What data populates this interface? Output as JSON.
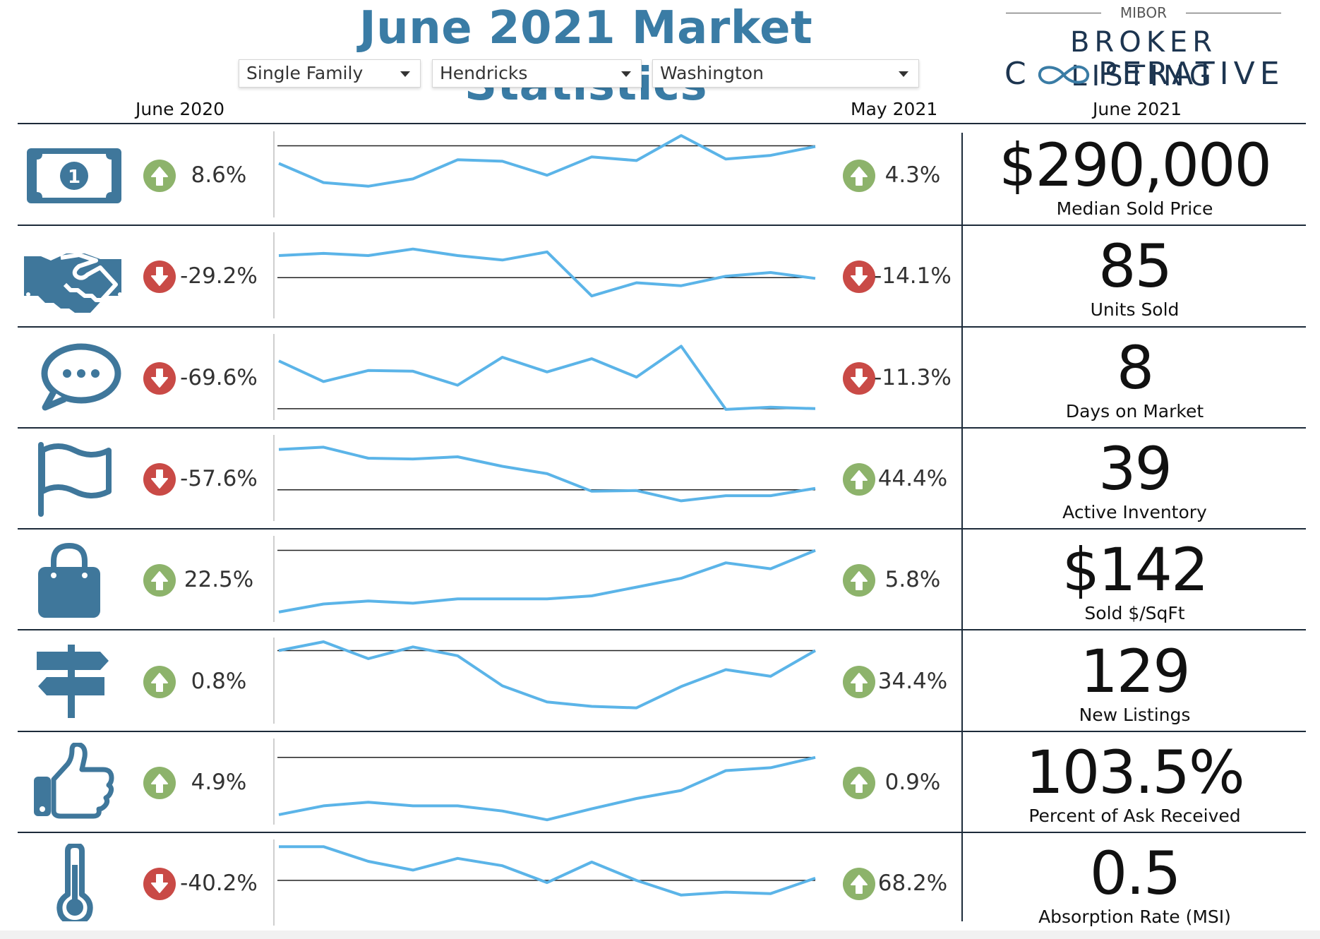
{
  "title": "June 2021 Market Statistics",
  "filters": {
    "property_type": "Single Family",
    "county": "Hendricks",
    "township": "Washington"
  },
  "logo": {
    "top": "MIBOR",
    "line1": "BROKER LISTING",
    "line2_start": "C",
    "line2_end": "PERATIVE"
  },
  "columns": {
    "prior_year": "June 2020",
    "prior_month": "May 2021",
    "current": "June 2021"
  },
  "colors": {
    "accent": "#3A7CA5",
    "icon": "#3F779B",
    "spark": "#5BB4E8",
    "up": "#8DB36B",
    "down": "#C94A46",
    "rule": "#1d2b3a"
  },
  "rows": [
    {
      "icon": "dollar-bill-icon",
      "yoy": {
        "value": "8.6%",
        "direction": "up"
      },
      "mom": {
        "value": "4.3%",
        "direction": "up"
      },
      "value": "$290,000",
      "label": "Median Sold Price",
      "spark": [
        0.62,
        0.36,
        0.31,
        0.41,
        0.67,
        0.65,
        0.46,
        0.71,
        0.66,
        1.0,
        0.68,
        0.73,
        0.85
      ],
      "ref": 0.86
    },
    {
      "icon": "handshake-icon",
      "yoy": {
        "value": "-29.2%",
        "direction": "down"
      },
      "mom": {
        "value": "-14.1%",
        "direction": "down"
      },
      "value": "85",
      "label": "Units Sold",
      "spark": [
        0.74,
        0.77,
        0.74,
        0.83,
        0.74,
        0.68,
        0.79,
        0.19,
        0.37,
        0.33,
        0.46,
        0.51,
        0.43
      ],
      "ref": 0.44
    },
    {
      "icon": "speech-bubble-icon",
      "yoy": {
        "value": "-69.6%",
        "direction": "down"
      },
      "mom": {
        "value": "-11.3%",
        "direction": "down"
      },
      "value": "8",
      "label": "Days on Market",
      "spark": [
        0.69,
        0.41,
        0.56,
        0.55,
        0.36,
        0.74,
        0.54,
        0.72,
        0.47,
        0.89,
        0.03,
        0.06,
        0.04
      ],
      "ref": 0.04
    },
    {
      "icon": "flag-icon",
      "yoy": {
        "value": "-57.6%",
        "direction": "down"
      },
      "mom": {
        "value": "44.4%",
        "direction": "up"
      },
      "value": "39",
      "label": "Active Inventory",
      "spark": [
        0.86,
        0.89,
        0.74,
        0.73,
        0.76,
        0.63,
        0.53,
        0.29,
        0.3,
        0.16,
        0.23,
        0.23,
        0.33
      ],
      "ref": 0.31
    },
    {
      "icon": "shopping-bag-icon",
      "yoy": {
        "value": "22.5%",
        "direction": "up"
      },
      "mom": {
        "value": "5.8%",
        "direction": "up"
      },
      "value": "$142",
      "label": "Sold $/SqFt",
      "spark": [
        0.02,
        0.13,
        0.17,
        0.14,
        0.2,
        0.2,
        0.2,
        0.24,
        0.36,
        0.48,
        0.69,
        0.61,
        0.86
      ],
      "ref": 0.86
    },
    {
      "icon": "signpost-icon",
      "yoy": {
        "value": "0.8%",
        "direction": "up"
      },
      "mom": {
        "value": "34.4%",
        "direction": "up"
      },
      "value": "129",
      "label": "New Listings",
      "spark": [
        0.88,
        1.0,
        0.77,
        0.93,
        0.81,
        0.4,
        0.18,
        0.12,
        0.1,
        0.39,
        0.62,
        0.53,
        0.88
      ],
      "ref": 0.88
    },
    {
      "icon": "thumbs-up-icon",
      "yoy": {
        "value": "4.9%",
        "direction": "up"
      },
      "mom": {
        "value": "0.9%",
        "direction": "up"
      },
      "value": "103.5%",
      "label": "Percent of Ask Received",
      "spark": [
        0.02,
        0.14,
        0.19,
        0.14,
        0.14,
        0.07,
        -0.05,
        0.1,
        0.24,
        0.35,
        0.62,
        0.66,
        0.8
      ],
      "ref": 0.8
    },
    {
      "icon": "thermometer-icon",
      "yoy": {
        "value": "-40.2%",
        "direction": "down"
      },
      "mom": {
        "value": "68.2%",
        "direction": "up"
      },
      "value": "0.5",
      "label": "Absorption Rate (MSI)",
      "spark": [
        0.96,
        0.96,
        0.76,
        0.64,
        0.8,
        0.7,
        0.47,
        0.75,
        0.5,
        0.3,
        0.34,
        0.32,
        0.53
      ],
      "ref": 0.5
    }
  ]
}
